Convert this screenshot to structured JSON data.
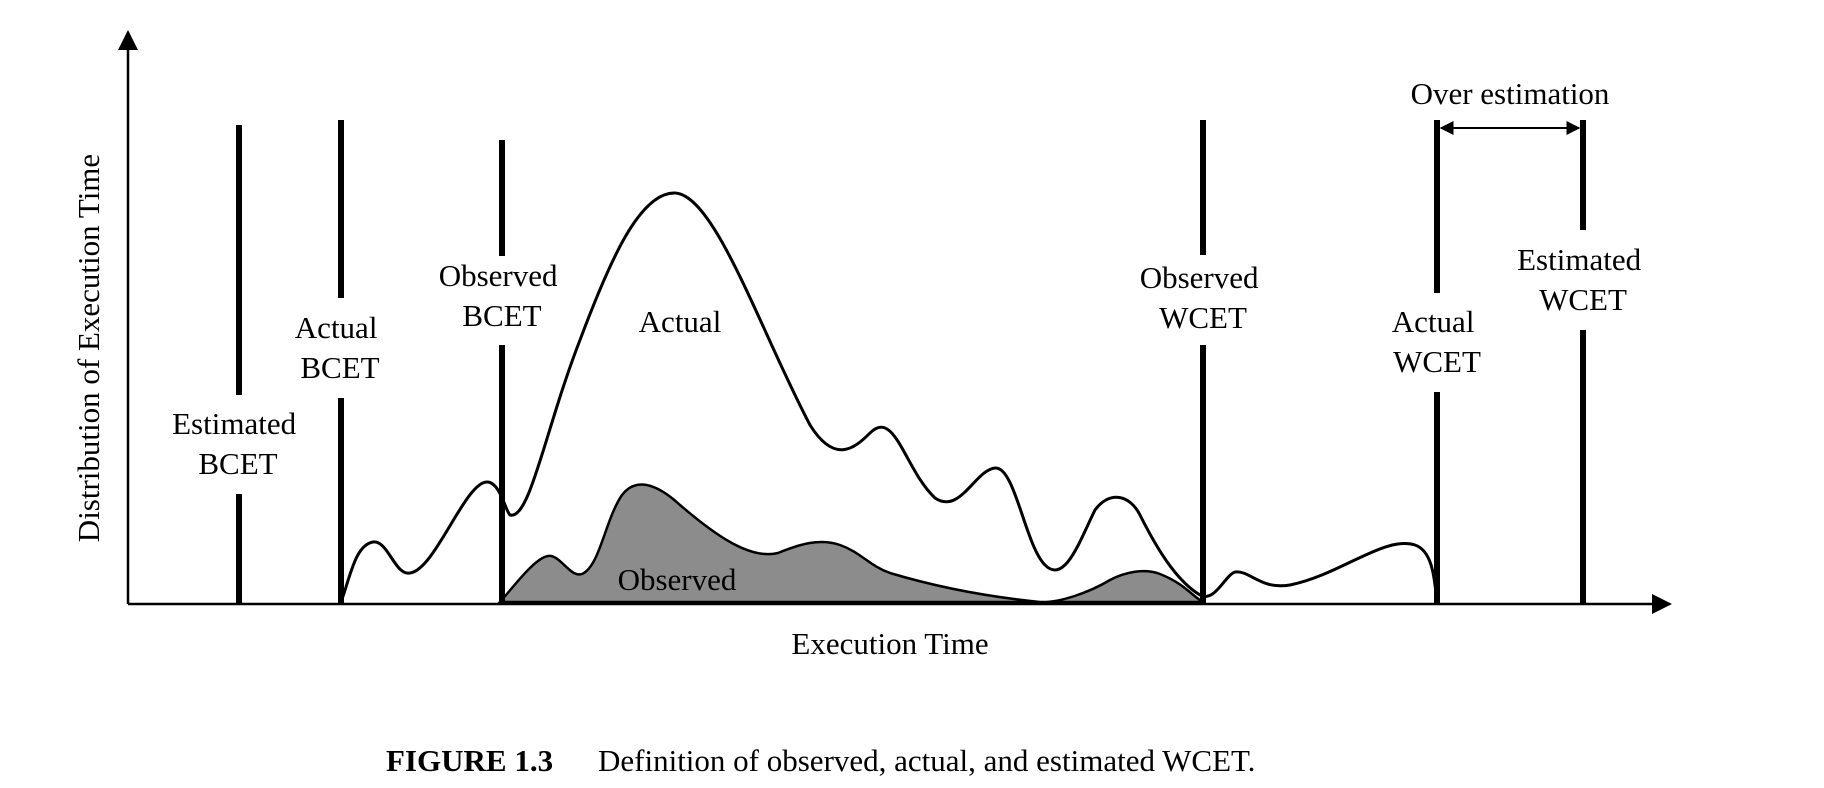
{
  "figure": {
    "x_axis_title": "Execution Time",
    "y_axis_title": "Distribution of Execution Time",
    "markers": {
      "estimated_bcet": [
        "Estimated",
        "BCET"
      ],
      "actual_bcet": [
        "Actual",
        "BCET"
      ],
      "observed_bcet": [
        "Observed",
        "BCET"
      ],
      "observed_wcet": [
        "Observed",
        "WCET"
      ],
      "actual_wcet": [
        "Actual",
        "WCET"
      ],
      "estimated_wcet": [
        "Estimated",
        "WCET"
      ]
    },
    "curve_labels": {
      "actual": "Actual",
      "observed": "Observed"
    },
    "over_estimation_label": "Over estimation",
    "colors": {
      "observed_fill": "#8c8c8c",
      "line": "#000000",
      "background": "#ffffff"
    }
  },
  "caption": {
    "number": "FIGURE 1.3",
    "text": "Definition of observed, actual, and estimated WCET."
  }
}
